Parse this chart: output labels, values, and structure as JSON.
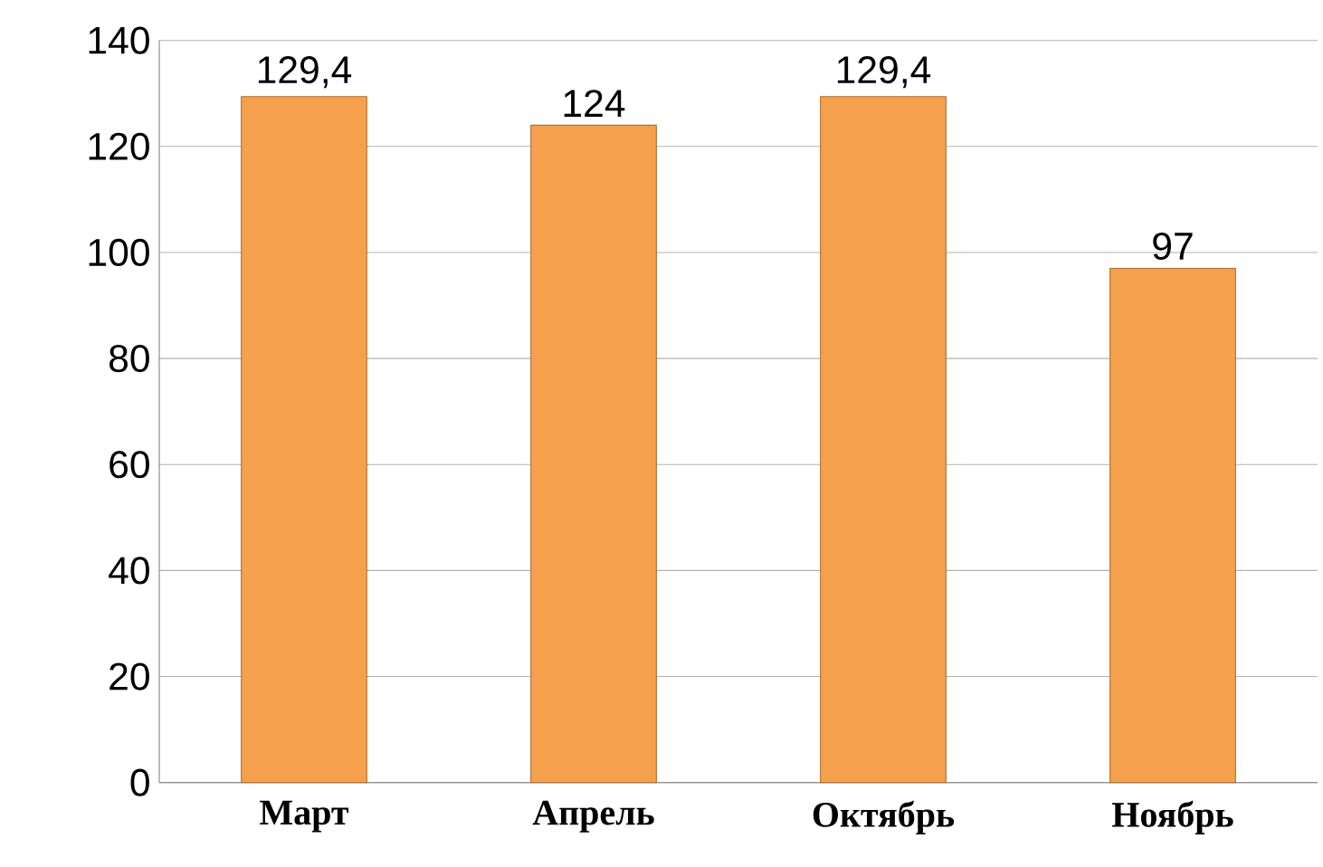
{
  "chart_data": {
    "type": "bar",
    "categories": [
      "Март",
      "Апрель",
      "Октябрь",
      "Ноябрь"
    ],
    "values": [
      129.4,
      124,
      129.4,
      97
    ],
    "value_labels": [
      "129,4",
      "124",
      "129,4",
      "97"
    ],
    "color": "#f5a04c",
    "ylim": [
      0,
      140
    ],
    "yticks": [
      0,
      20,
      40,
      60,
      80,
      100,
      120,
      140
    ],
    "grid": "y"
  }
}
